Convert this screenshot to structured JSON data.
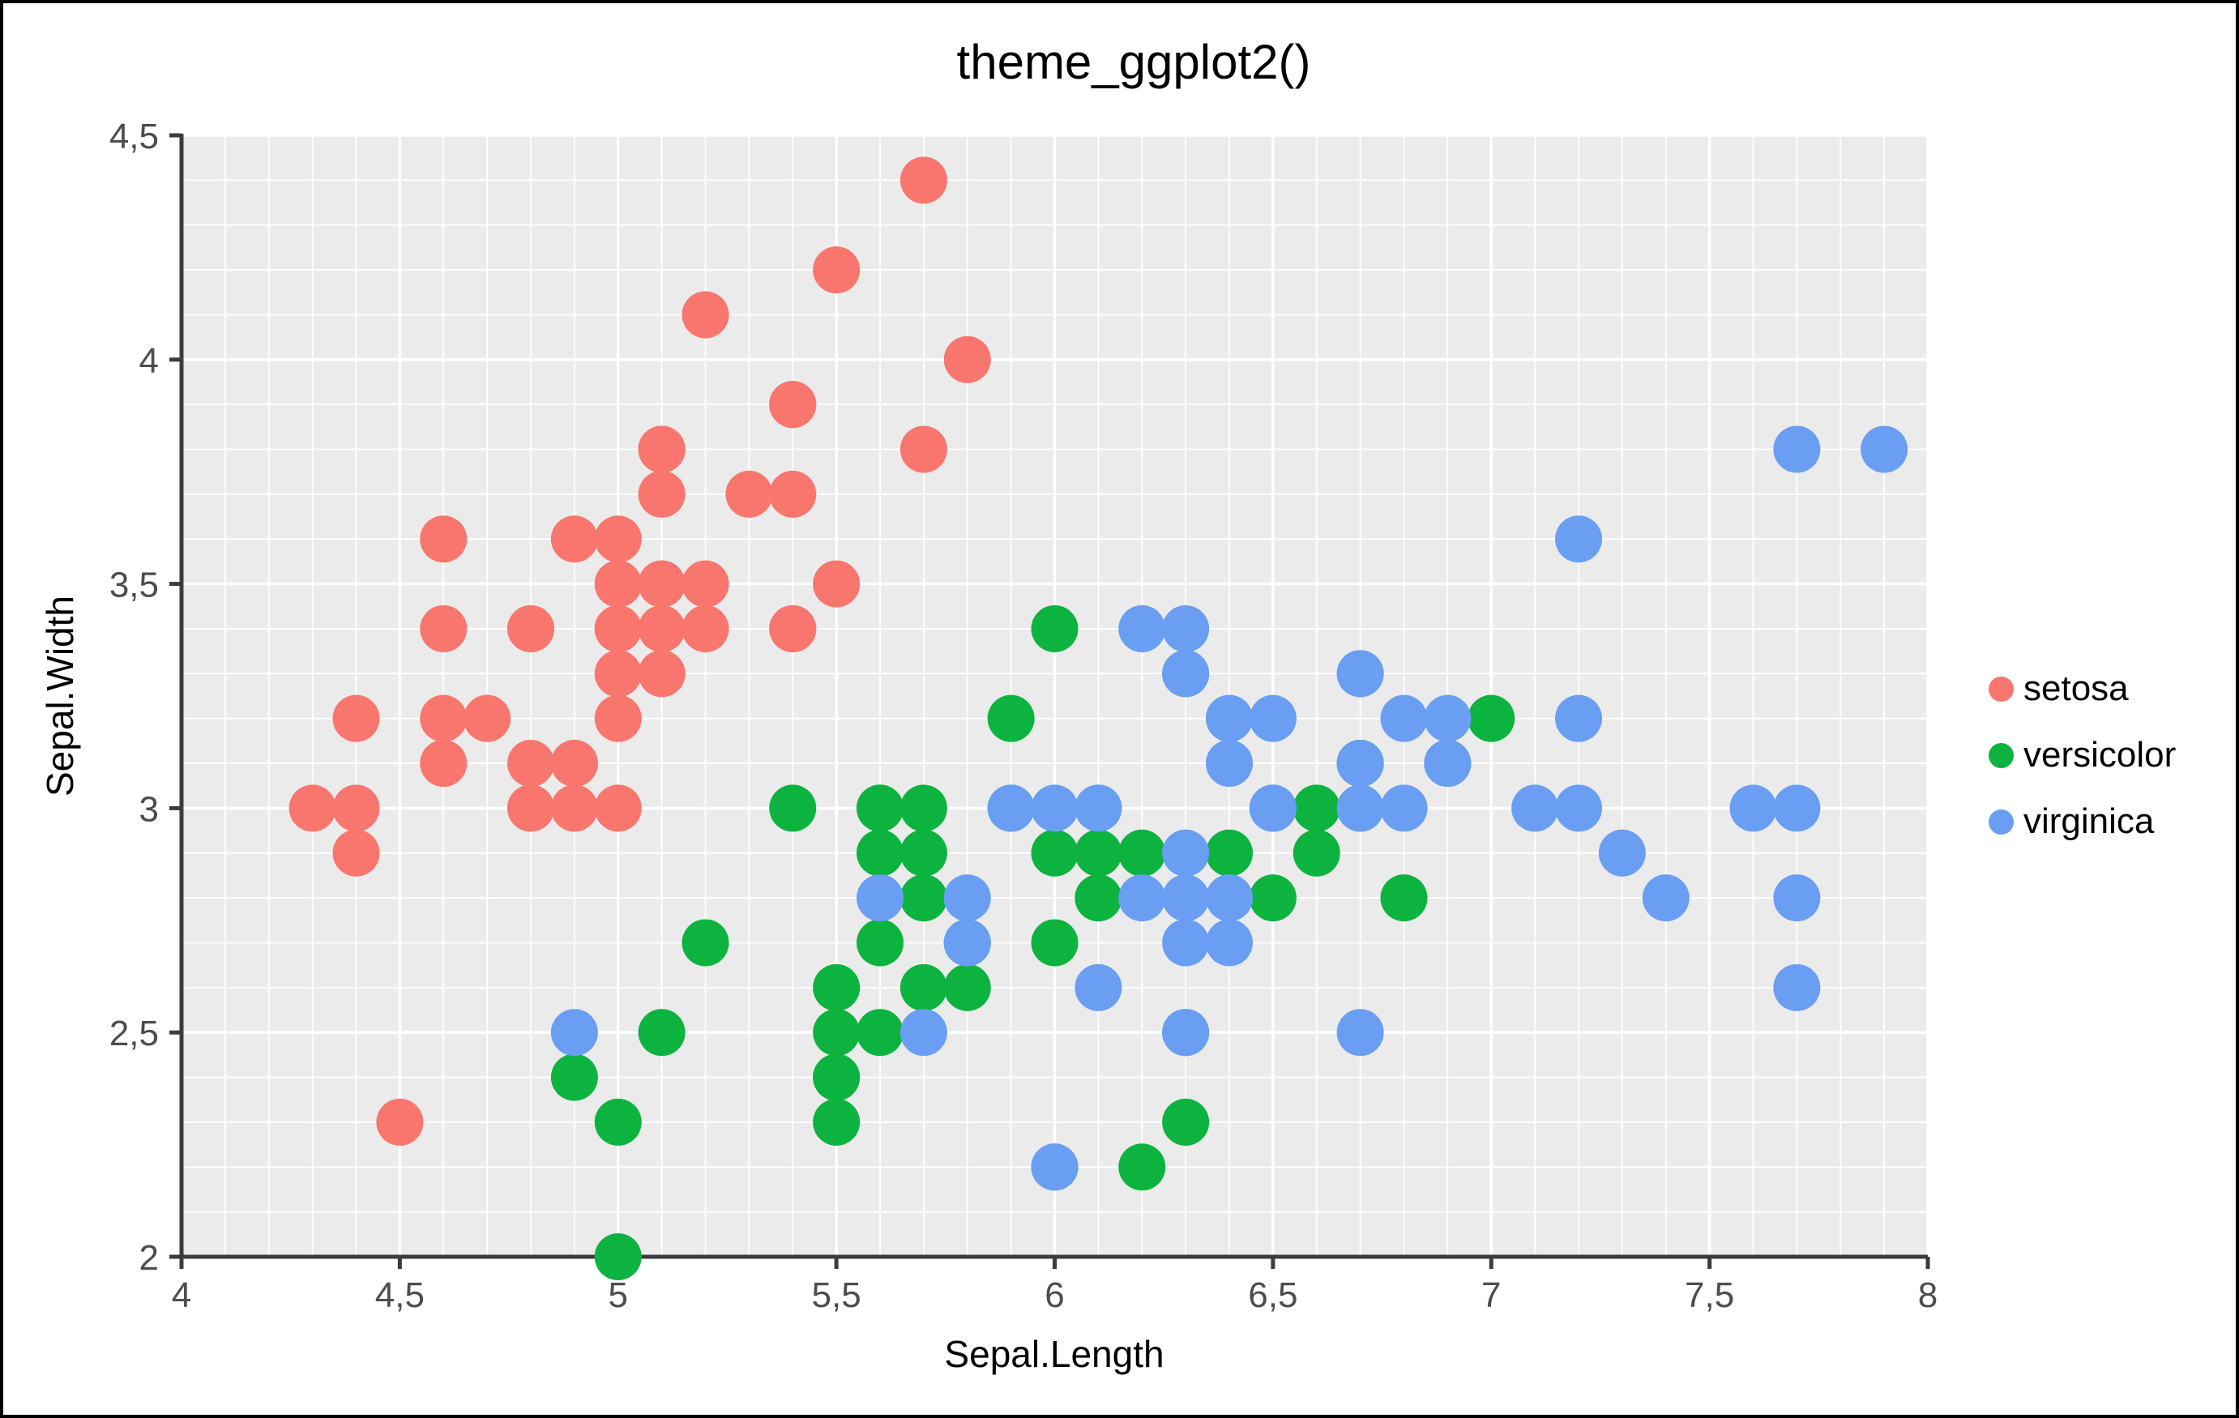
{
  "figure": {
    "background": "#FFFFFF",
    "border_color": "#000000"
  },
  "chart_data": {
    "type": "scatter",
    "title": "theme_ggplot2()",
    "xlabel": "Sepal.Length",
    "ylabel": "Sepal.Width",
    "xlim": [
      4,
      8
    ],
    "ylim": [
      2,
      4.5
    ],
    "x_ticks": {
      "values": [
        4,
        4.5,
        5,
        5.5,
        6,
        6.5,
        7,
        7.5,
        8
      ],
      "labels": [
        "4",
        "4,5",
        "5",
        "5,5",
        "6",
        "6,5",
        "7",
        "7,5",
        "8"
      ]
    },
    "y_ticks": {
      "values": [
        2,
        2.5,
        3,
        3.5,
        4,
        4.5
      ],
      "labels": [
        "2",
        "2,5",
        "3",
        "3,5",
        "4",
        "4,5"
      ]
    },
    "minor_grid_step": 0.1,
    "legend_position": "right",
    "point_radius_px": 29,
    "style": {
      "panel_bg": "#EBEBEB",
      "major_grid_color": "#FFFFFF",
      "minor_grid_color": "#FFFFFF",
      "axis_color": "#3C3C3C",
      "tick_label_color": "#4D4D4D",
      "grid_on": true
    },
    "series": [
      {
        "name": "setosa",
        "color": "#F8766D",
        "points": [
          [
            5.1,
            3.5
          ],
          [
            4.9,
            3.0
          ],
          [
            4.7,
            3.2
          ],
          [
            4.6,
            3.1
          ],
          [
            5.0,
            3.6
          ],
          [
            5.4,
            3.9
          ],
          [
            4.6,
            3.4
          ],
          [
            5.0,
            3.4
          ],
          [
            4.4,
            2.9
          ],
          [
            4.9,
            3.1
          ],
          [
            5.4,
            3.7
          ],
          [
            4.8,
            3.4
          ],
          [
            4.8,
            3.0
          ],
          [
            4.3,
            3.0
          ],
          [
            5.8,
            4.0
          ],
          [
            5.7,
            4.4
          ],
          [
            5.4,
            3.9
          ],
          [
            5.1,
            3.5
          ],
          [
            5.7,
            3.8
          ],
          [
            5.1,
            3.8
          ],
          [
            5.4,
            3.4
          ],
          [
            5.1,
            3.7
          ],
          [
            4.6,
            3.6
          ],
          [
            5.1,
            3.3
          ],
          [
            4.8,
            3.4
          ],
          [
            5.0,
            3.0
          ],
          [
            5.0,
            3.4
          ],
          [
            5.2,
            3.5
          ],
          [
            5.2,
            3.4
          ],
          [
            4.7,
            3.2
          ],
          [
            4.8,
            3.1
          ],
          [
            5.4,
            3.4
          ],
          [
            5.2,
            4.1
          ],
          [
            5.5,
            4.2
          ],
          [
            4.9,
            3.1
          ],
          [
            5.0,
            3.2
          ],
          [
            5.5,
            3.5
          ],
          [
            4.9,
            3.6
          ],
          [
            4.4,
            3.0
          ],
          [
            5.1,
            3.4
          ],
          [
            5.0,
            3.5
          ],
          [
            4.5,
            2.3
          ],
          [
            4.4,
            3.2
          ],
          [
            5.0,
            3.5
          ],
          [
            5.1,
            3.8
          ],
          [
            4.8,
            3.0
          ],
          [
            5.1,
            3.8
          ],
          [
            4.6,
            3.2
          ],
          [
            5.3,
            3.7
          ],
          [
            5.0,
            3.3
          ]
        ]
      },
      {
        "name": "versicolor",
        "color": "#0DB33F",
        "points": [
          [
            7.0,
            3.2
          ],
          [
            6.4,
            3.2
          ],
          [
            6.9,
            3.1
          ],
          [
            5.5,
            2.3
          ],
          [
            6.5,
            2.8
          ],
          [
            5.7,
            2.8
          ],
          [
            6.3,
            3.3
          ],
          [
            4.9,
            2.4
          ],
          [
            6.6,
            2.9
          ],
          [
            5.2,
            2.7
          ],
          [
            5.0,
            2.0
          ],
          [
            5.9,
            3.0
          ],
          [
            6.0,
            2.2
          ],
          [
            6.1,
            2.9
          ],
          [
            5.6,
            2.9
          ],
          [
            6.7,
            3.1
          ],
          [
            5.6,
            3.0
          ],
          [
            5.8,
            2.7
          ],
          [
            6.2,
            2.2
          ],
          [
            5.6,
            2.5
          ],
          [
            5.9,
            3.2
          ],
          [
            6.1,
            2.8
          ],
          [
            6.3,
            2.5
          ],
          [
            6.1,
            2.8
          ],
          [
            6.4,
            2.9
          ],
          [
            6.6,
            3.0
          ],
          [
            6.8,
            2.8
          ],
          [
            6.7,
            3.0
          ],
          [
            6.0,
            2.9
          ],
          [
            5.7,
            2.6
          ],
          [
            5.5,
            2.4
          ],
          [
            5.5,
            2.4
          ],
          [
            5.8,
            2.7
          ],
          [
            6.0,
            2.7
          ],
          [
            5.4,
            3.0
          ],
          [
            6.0,
            3.4
          ],
          [
            6.7,
            3.1
          ],
          [
            6.3,
            2.3
          ],
          [
            5.6,
            3.0
          ],
          [
            5.5,
            2.5
          ],
          [
            5.5,
            2.6
          ],
          [
            6.1,
            3.0
          ],
          [
            5.8,
            2.6
          ],
          [
            5.0,
            2.3
          ],
          [
            5.6,
            2.7
          ],
          [
            5.7,
            3.0
          ],
          [
            5.7,
            2.9
          ],
          [
            6.2,
            2.9
          ],
          [
            5.1,
            2.5
          ],
          [
            5.7,
            2.8
          ]
        ]
      },
      {
        "name": "virginica",
        "color": "#699EF3",
        "points": [
          [
            6.3,
            3.3
          ],
          [
            5.8,
            2.7
          ],
          [
            7.1,
            3.0
          ],
          [
            6.3,
            2.9
          ],
          [
            6.5,
            3.0
          ],
          [
            7.6,
            3.0
          ],
          [
            4.9,
            2.5
          ],
          [
            7.3,
            2.9
          ],
          [
            6.7,
            2.5
          ],
          [
            7.2,
            3.6
          ],
          [
            6.5,
            3.2
          ],
          [
            6.4,
            2.7
          ],
          [
            6.8,
            3.0
          ],
          [
            5.7,
            2.5
          ],
          [
            5.8,
            2.8
          ],
          [
            6.4,
            3.2
          ],
          [
            6.5,
            3.0
          ],
          [
            7.7,
            3.8
          ],
          [
            7.7,
            2.6
          ],
          [
            6.0,
            2.2
          ],
          [
            6.9,
            3.2
          ],
          [
            5.6,
            2.8
          ],
          [
            7.7,
            2.8
          ],
          [
            6.3,
            2.7
          ],
          [
            6.7,
            3.3
          ],
          [
            7.2,
            3.2
          ],
          [
            6.2,
            2.8
          ],
          [
            6.1,
            3.0
          ],
          [
            6.4,
            2.8
          ],
          [
            7.2,
            3.0
          ],
          [
            7.4,
            2.8
          ],
          [
            7.9,
            3.8
          ],
          [
            6.4,
            2.8
          ],
          [
            6.3,
            2.8
          ],
          [
            6.1,
            2.6
          ],
          [
            7.7,
            3.0
          ],
          [
            6.3,
            3.4
          ],
          [
            6.4,
            3.1
          ],
          [
            6.0,
            3.0
          ],
          [
            6.9,
            3.1
          ],
          [
            6.7,
            3.1
          ],
          [
            6.9,
            3.1
          ],
          [
            5.8,
            2.7
          ],
          [
            6.8,
            3.2
          ],
          [
            6.7,
            3.3
          ],
          [
            6.7,
            3.0
          ],
          [
            6.3,
            2.5
          ],
          [
            6.5,
            3.0
          ],
          [
            6.2,
            3.4
          ],
          [
            5.9,
            3.0
          ]
        ]
      }
    ]
  }
}
